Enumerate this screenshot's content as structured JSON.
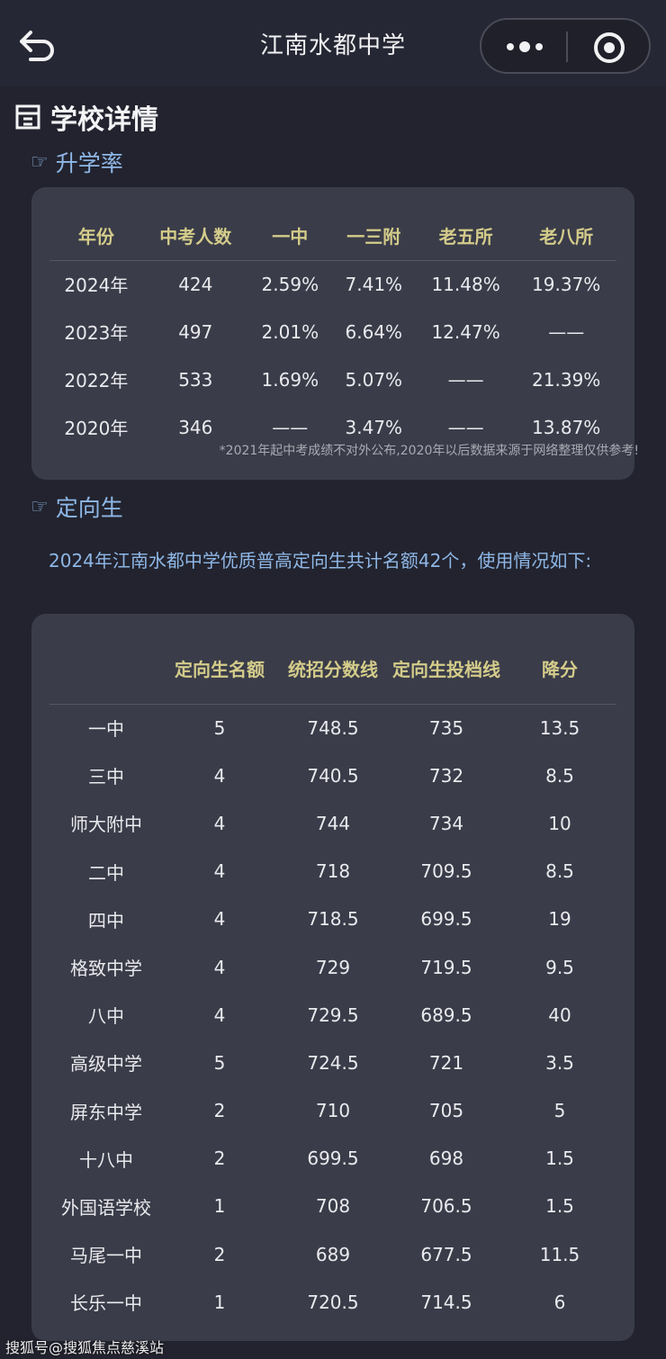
{
  "header": {
    "title": "江南水都中学",
    "back_icon": "back-arrow-icon",
    "more_icon": "more-dots-icon",
    "close_icon": "target-circle-icon"
  },
  "page": {
    "heading": "学校详情",
    "section1_title": "升学率",
    "section2_title": "定向生",
    "note": "*2021年起中考成绩不对外公布,2020年以后数据来源于网络整理仅供参考!",
    "intro": "2024年江南水都中学优质普高定向生共计名额42个，使用情况如下:",
    "watermark": "搜狐号@搜狐焦点慈溪站"
  },
  "rates": {
    "headers": [
      "年份",
      "中考人数",
      "一中",
      "一三附",
      "老五所",
      "老八所"
    ],
    "rows": [
      [
        "2024年",
        "424",
        "2.59%",
        "7.41%",
        "11.48%",
        "19.37%"
      ],
      [
        "2023年",
        "497",
        "2.01%",
        "6.64%",
        "12.47%",
        "——"
      ],
      [
        "2022年",
        "533",
        "1.69%",
        "5.07%",
        "——",
        "21.39%"
      ],
      [
        "2020年",
        "346",
        "——",
        "3.47%",
        "——",
        "13.87%"
      ]
    ]
  },
  "quota": {
    "headers": [
      "",
      "定向生名额",
      "统招分数线",
      "定向生投档线",
      "降分"
    ],
    "rows": [
      [
        "一中",
        "5",
        "748.5",
        "735",
        "13.5"
      ],
      [
        "三中",
        "4",
        "740.5",
        "732",
        "8.5"
      ],
      [
        "师大附中",
        "4",
        "744",
        "734",
        "10"
      ],
      [
        "二中",
        "4",
        "718",
        "709.5",
        "8.5"
      ],
      [
        "四中",
        "4",
        "718.5",
        "699.5",
        "19"
      ],
      [
        "格致中学",
        "4",
        "729",
        "719.5",
        "9.5"
      ],
      [
        "八中",
        "4",
        "729.5",
        "689.5",
        "40"
      ],
      [
        "高级中学",
        "5",
        "724.5",
        "721",
        "3.5"
      ],
      [
        "屏东中学",
        "2",
        "710",
        "705",
        "5"
      ],
      [
        "十八中",
        "2",
        "699.5",
        "698",
        "1.5"
      ],
      [
        "外国语学校",
        "1",
        "708",
        "706.5",
        "1.5"
      ],
      [
        "马尾一中",
        "2",
        "689",
        "677.5",
        "11.5"
      ],
      [
        "长乐一中",
        "1",
        "720.5",
        "714.5",
        "6"
      ]
    ]
  }
}
